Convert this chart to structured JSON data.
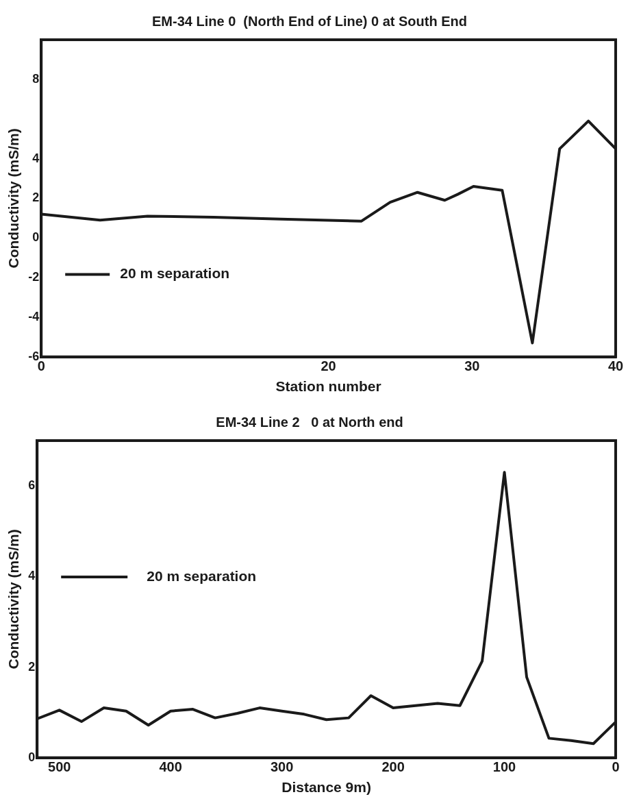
{
  "chart_data": [
    {
      "type": "line",
      "title": "EM-34 Line 0  (North End of Line) 0 at South End",
      "xlabel": "Station number",
      "ylabel": "Conductivity (mS/m)",
      "xlim": [
        0,
        40
      ],
      "xticks": [
        0,
        20,
        30,
        40
      ],
      "ylim": [
        -6,
        10
      ],
      "yticks": [
        -6,
        -4,
        -2,
        0,
        2,
        4,
        8
      ],
      "grid": false,
      "legend": "left",
      "marker": "none",
      "line_style": "solid",
      "series": [
        {
          "name": "20 m separation",
          "color": "#1a1a1a",
          "x": [
            0,
            4.1,
            7.4,
            12,
            16.7,
            22.3,
            24.3,
            26.2,
            28.1,
            29,
            30.1,
            32.1,
            34.2,
            36.1,
            38.1,
            40
          ],
          "values": [
            1.2,
            0.9,
            1.1,
            1.05,
            0.95,
            0.85,
            1.8,
            2.3,
            1.9,
            2.2,
            2.6,
            2.4,
            -5.3,
            4.5,
            5.9,
            4.5
          ]
        }
      ]
    },
    {
      "type": "line",
      "title": "EM-34 Line 2   0 at North end",
      "xlabel": "Distance 9m)",
      "ylabel": "Conductivity (mS/m)",
      "xlim": [
        520,
        0
      ],
      "xticks": [
        500,
        400,
        300,
        200,
        100,
        0
      ],
      "ylim": [
        0,
        7
      ],
      "yticks": [
        0,
        2,
        4,
        6
      ],
      "grid": false,
      "legend": "left",
      "marker": "none",
      "line_style": "solid",
      "series": [
        {
          "name": "20 m separation",
          "color": "#1a1a1a",
          "x": [
            520,
            500,
            480,
            460,
            440,
            420,
            400,
            380,
            360,
            340,
            320,
            300,
            280,
            260,
            240,
            220,
            200,
            180,
            160,
            140,
            120,
            100,
            80,
            60,
            40,
            20,
            0
          ],
          "values": [
            0.86,
            1.05,
            0.8,
            1.1,
            1.03,
            0.72,
            1.03,
            1.07,
            0.88,
            0.98,
            1.1,
            1.03,
            0.96,
            0.84,
            0.88,
            1.37,
            1.1,
            1.15,
            1.2,
            1.15,
            2.13,
            6.3,
            1.78,
            0.43,
            0.38,
            0.31,
            0.79
          ]
        }
      ]
    }
  ]
}
